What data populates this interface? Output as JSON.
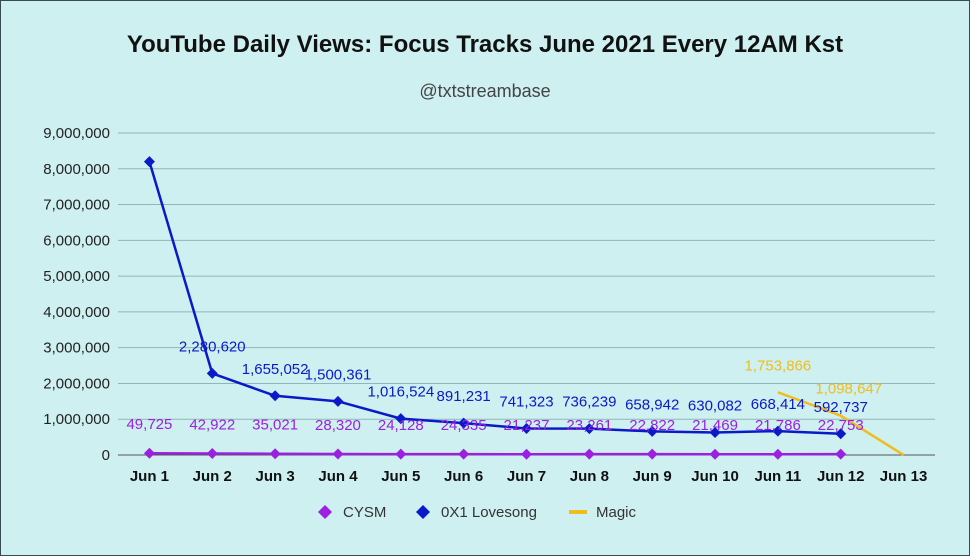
{
  "chart_data": {
    "type": "line",
    "title": "YouTube Daily Views: Focus Tracks June 2021 Every 12AM Kst",
    "subtitle": "@txtstreambase",
    "categories": [
      "Jun 1",
      "Jun 2",
      "Jun 3",
      "Jun 4",
      "Jun 5",
      "Jun 6",
      "Jun 7",
      "Jun 8",
      "Jun 9",
      "Jun 10",
      "Jun 11",
      "Jun 12",
      "Jun 13"
    ],
    "ylim": [
      0,
      9000000
    ],
    "yticks": [
      "0",
      "1,000,000",
      "2,000,000",
      "3,000,000",
      "4,000,000",
      "5,000,000",
      "6,000,000",
      "7,000,000",
      "8,000,000",
      "9,000,000"
    ],
    "grid": true,
    "legend_position": "bottom",
    "series": [
      {
        "name": "CYSM",
        "color": "#9b20e0",
        "marker": "diamond",
        "values": [
          49725,
          42922,
          35021,
          28320,
          24128,
          24335,
          21237,
          23261,
          22822,
          21469,
          21786,
          22753,
          null
        ],
        "labels": [
          "49,725",
          "42,922",
          "35,021",
          "28,320",
          "24,128",
          "24,335",
          "21,237",
          "23,261",
          "22,822",
          "21,469",
          "21,786",
          "22,753",
          ""
        ]
      },
      {
        "name": "0X1 Lovesong",
        "color": "#0a1ac8",
        "marker": "diamond",
        "values": [
          8200000,
          2280620,
          1655052,
          1500361,
          1016524,
          891231,
          741323,
          736239,
          658942,
          630082,
          668414,
          592737,
          null
        ],
        "labels": [
          "",
          "2,280,620",
          "1,655,052",
          "1,500,361",
          "1,016,524",
          "891,231",
          "741,323",
          "736,239",
          "658,942",
          "630,082",
          "668,414",
          "592,737",
          ""
        ]
      },
      {
        "name": "Magic",
        "color": "#f0bc1e",
        "marker": "line",
        "values": [
          null,
          null,
          null,
          null,
          null,
          null,
          null,
          null,
          null,
          null,
          1753866,
          1098647,
          0
        ],
        "labels": [
          "",
          "",
          "",
          "",
          "",
          "",
          "",
          "",
          "",
          "",
          "1,753,866",
          "1,098,647",
          ""
        ]
      }
    ]
  }
}
